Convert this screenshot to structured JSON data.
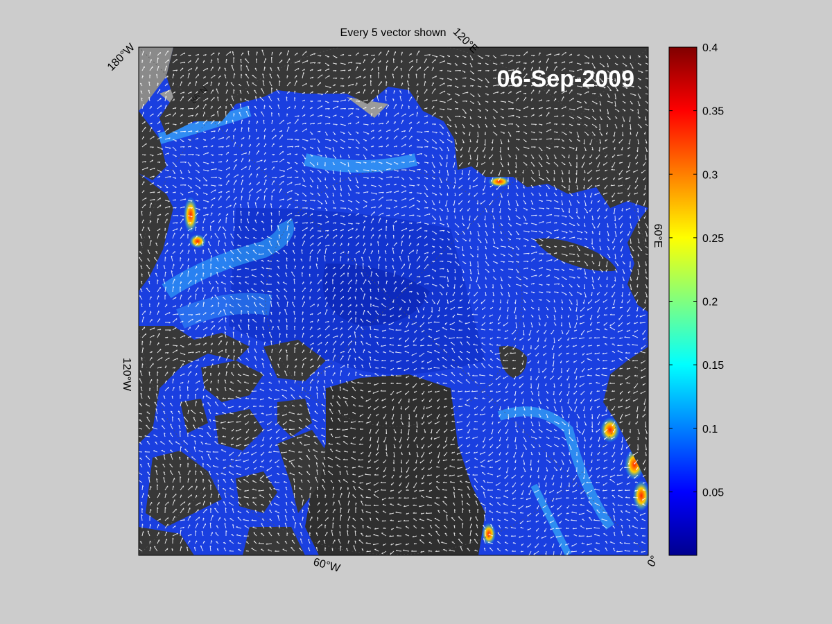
{
  "title": "Every 5 vector shown",
  "date": "06-Sep-2009",
  "colors": {
    "background": "#cccccc",
    "land": "#3a3a3a",
    "land_dark": "#2f2f2f",
    "ocean_base": "#1a3fe0",
    "ice_edge": "#9a9a9a",
    "vector": "#ffffff"
  },
  "labels": {
    "lon_180W": "180°W",
    "lon_120E": "120°E",
    "lon_60E": "60°E",
    "lon_120W": "120°W",
    "lon_60W": "60°W",
    "lon_0": "0°",
    "lat_86N": "86°N"
  },
  "colorbar": {
    "colormap": "jet",
    "min": 0,
    "max": 0.4,
    "ticks": [
      "0.4",
      "0.35",
      "0.3",
      "0.25",
      "0.2",
      "0.15",
      "0.1",
      "0.05"
    ],
    "tick_values": [
      0.4,
      0.35,
      0.3,
      0.25,
      0.2,
      0.15,
      0.1,
      0.05
    ]
  }
}
